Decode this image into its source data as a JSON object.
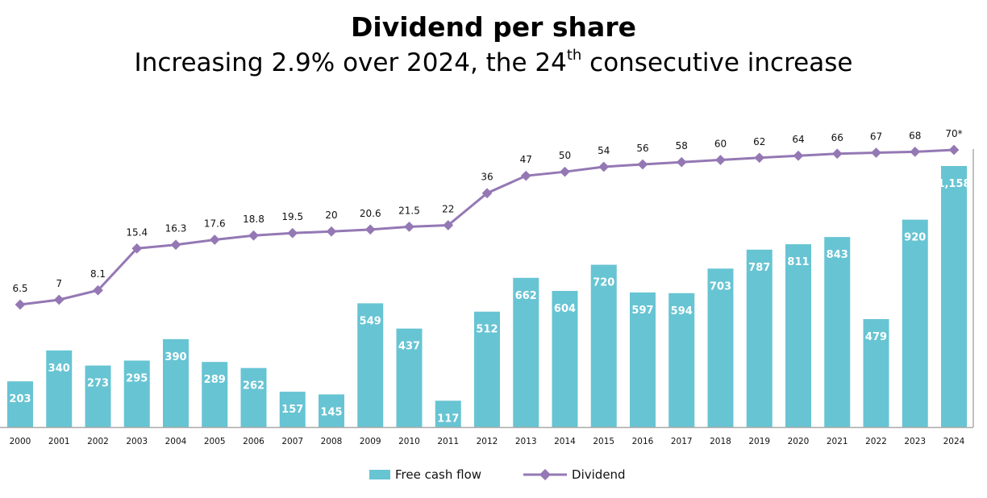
{
  "title": "Dividend per share",
  "subtitle_pre": "Increasing 2.9% over 2024, the 24",
  "subtitle_sup": "th",
  "subtitle_post": " consecutive increase",
  "chart_data": {
    "type": "bar+line",
    "categories": [
      "2000",
      "2001",
      "2002",
      "2003",
      "2004",
      "2005",
      "2006",
      "2007",
      "2008",
      "2009",
      "2010",
      "2011",
      "2012",
      "2013",
      "2014",
      "2015",
      "2016",
      "2017",
      "2018",
      "2019",
      "2020",
      "2021",
      "2022",
      "2023",
      "2024"
    ],
    "series": [
      {
        "name": "Free cash flow",
        "type": "bar",
        "color": "#67c4d3",
        "values": [
          203,
          340,
          273,
          295,
          390,
          289,
          262,
          157,
          145,
          549,
          437,
          117,
          512,
          662,
          604,
          720,
          597,
          594,
          703,
          787,
          811,
          843,
          479,
          920,
          1158
        ],
        "labels": [
          "203",
          "340",
          "273",
          "295",
          "390",
          "289",
          "262",
          "157",
          "145",
          "549",
          "437",
          "117",
          "512",
          "662",
          "604",
          "720",
          "597",
          "594",
          "703",
          "787",
          "811",
          "843",
          "479",
          "920",
          "1,158"
        ]
      },
      {
        "name": "Dividend",
        "type": "line",
        "color": "#9478b4",
        "values": [
          6.5,
          7,
          8.1,
          15.4,
          16.3,
          17.6,
          18.8,
          19.5,
          20,
          20.6,
          21.5,
          22,
          36,
          47,
          50,
          54,
          56,
          58,
          60,
          62,
          64,
          66,
          67,
          68,
          70
        ],
        "labels": [
          "6.5",
          "7",
          "8.1",
          "15.4",
          "16.3",
          "17.6",
          "18.8",
          "19.5",
          "20",
          "20.6",
          "21.5",
          "22",
          "36",
          "47",
          "50",
          "54",
          "56",
          "58",
          "60",
          "62",
          "64",
          "66",
          "67",
          "68",
          "70*"
        ]
      }
    ],
    "legend_position": "bottom",
    "grid": false
  },
  "legend": {
    "bar": "Free cash flow",
    "line": "Dividend"
  }
}
